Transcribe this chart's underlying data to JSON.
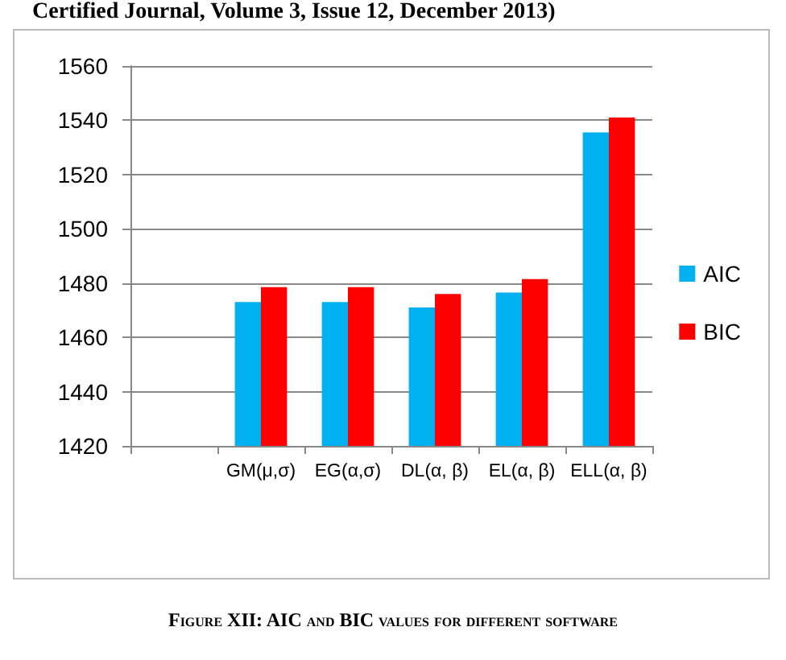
{
  "chart_data": {
    "type": "bar",
    "categories": [
      null,
      "GM(μ,σ)",
      "EG(α,σ)",
      "DL(α, β)",
      "EL(α, β)",
      "ELL(α, β)"
    ],
    "series": [
      {
        "name": "AIC",
        "color": "#00b0f0",
        "values": [
          null,
          1473,
          1473,
          1471,
          1476.5,
          1535.5
        ]
      },
      {
        "name": "BIC",
        "color": "#ff0000",
        "values": [
          null,
          1478.5,
          1478.5,
          1476,
          1481.5,
          1541
        ]
      }
    ],
    "ylim": [
      1420,
      1560
    ],
    "yticks": [
      1420,
      1440,
      1460,
      1480,
      1500,
      1520,
      1540,
      1560
    ],
    "grid": "y",
    "legend": "right",
    "annotations": [
      "Certified Journal, Volume 3, Issue 12, December 2013)",
      "Figure XII: AIC and BIC values for different software"
    ]
  }
}
